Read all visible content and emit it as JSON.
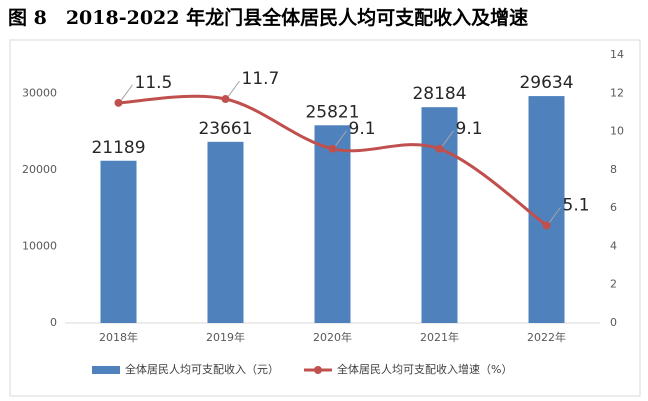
{
  "chart_data": {
    "type": "bar-line",
    "title": "图 8　2018-2022 年龙门县全体居民人均可支配收入及增速",
    "categories": [
      "2018年",
      "2019年",
      "2020年",
      "2021年",
      "2022年"
    ],
    "series": [
      {
        "name": "全体居民人均可支配收入（元）",
        "type": "bar",
        "color": "#4f81bd",
        "values": [
          21189,
          23661,
          25821,
          28184,
          29634
        ]
      },
      {
        "name": "全体居民人均可支配收入增速（%）",
        "type": "line",
        "axis": "y2",
        "color": "#c0504d",
        "values": [
          11.5,
          11.7,
          9.1,
          9.1,
          5.1
        ]
      }
    ],
    "ylim": [
      0,
      35000
    ],
    "yticks": [
      0,
      10000,
      20000,
      30000
    ],
    "y2lim": [
      0,
      14
    ],
    "y2ticks": [
      0,
      2,
      4,
      6,
      8,
      10,
      12,
      14
    ],
    "legend": "bottom"
  }
}
